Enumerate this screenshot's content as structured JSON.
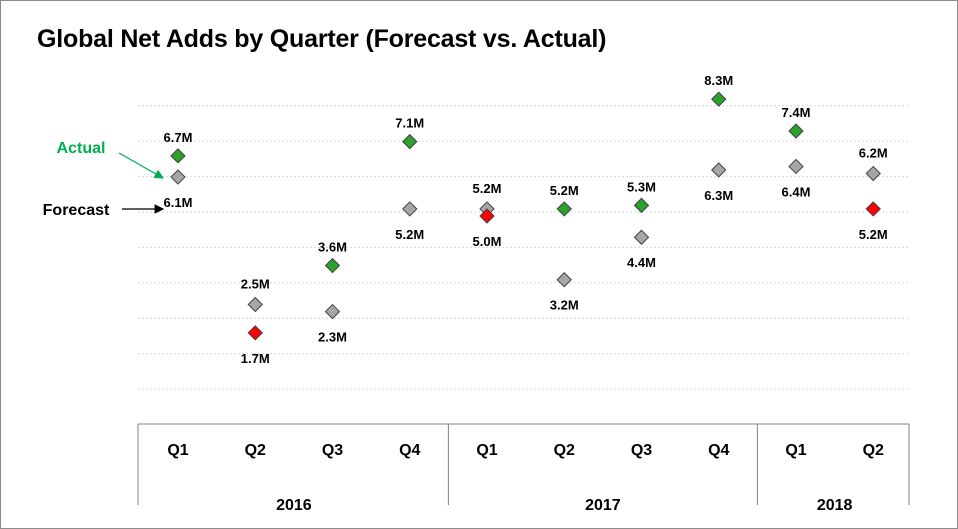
{
  "chart_data": {
    "type": "scatter",
    "title": "Global Net Adds by Quarter (Forecast vs. Actual)",
    "categories": [
      "Q1",
      "Q2",
      "Q3",
      "Q4",
      "Q1",
      "Q2",
      "Q3",
      "Q4",
      "Q1",
      "Q2"
    ],
    "years": [
      {
        "label": "2016",
        "quarters": 4
      },
      {
        "label": "2017",
        "quarters": 4
      },
      {
        "label": "2018",
        "quarters": 2
      }
    ],
    "series": [
      {
        "name": "Forecast",
        "values": [
          6.1,
          2.5,
          2.3,
          5.2,
          5.2,
          3.2,
          4.4,
          6.3,
          6.4,
          6.2
        ],
        "labels": [
          "6.1M",
          "2.5M",
          "2.3M",
          "5.2M",
          "5.2M",
          "3.2M",
          "4.4M",
          "6.3M",
          "6.4M",
          "6.2M"
        ]
      },
      {
        "name": "Actual",
        "values": [
          6.7,
          1.7,
          3.6,
          7.1,
          5.0,
          5.2,
          5.3,
          8.3,
          7.4,
          5.2
        ],
        "labels": [
          "6.7M",
          "1.7M",
          "3.6M",
          "7.1M",
          "5.0M",
          "5.2M",
          "5.3M",
          "8.3M",
          "7.4M",
          "5.2M"
        ]
      }
    ],
    "ylim": [
      0,
      9
    ],
    "grid": true,
    "annotations": [
      {
        "text": "Actual",
        "color": "#00b050",
        "points_to": "Actual"
      },
      {
        "text": "Forecast",
        "color": "#000000",
        "points_to": "Forecast"
      }
    ],
    "colors": {
      "forecast": "#a6a6a6",
      "actual_above_forecast": "#2ca02c",
      "actual_below_forecast": "#ff0000",
      "marker_outline": "#404040",
      "grid": "#d9d9d9",
      "axis": "#808080"
    }
  }
}
